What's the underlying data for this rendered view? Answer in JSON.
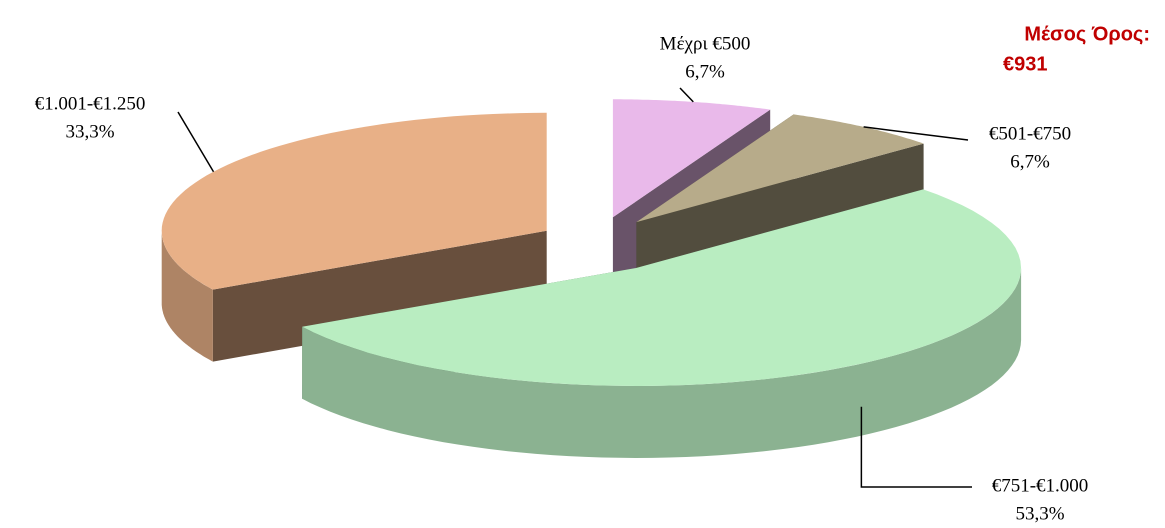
{
  "chart_data": {
    "type": "pie3d",
    "categories": [
      "Μέχρι €500",
      "€501-€750",
      "€751-€1.000",
      "€1.001-€1.250"
    ],
    "values": [
      6.7,
      6.7,
      53.3,
      33.3
    ],
    "value_labels": [
      "6,7%",
      "6,7%",
      "53,3%",
      "33,3%"
    ],
    "colors": [
      "#e9b9ea",
      "#b7ab8a",
      "#b9edc1",
      "#e8b087"
    ],
    "annotation": [
      "Μέσος Όρος:",
      "€931"
    ]
  }
}
